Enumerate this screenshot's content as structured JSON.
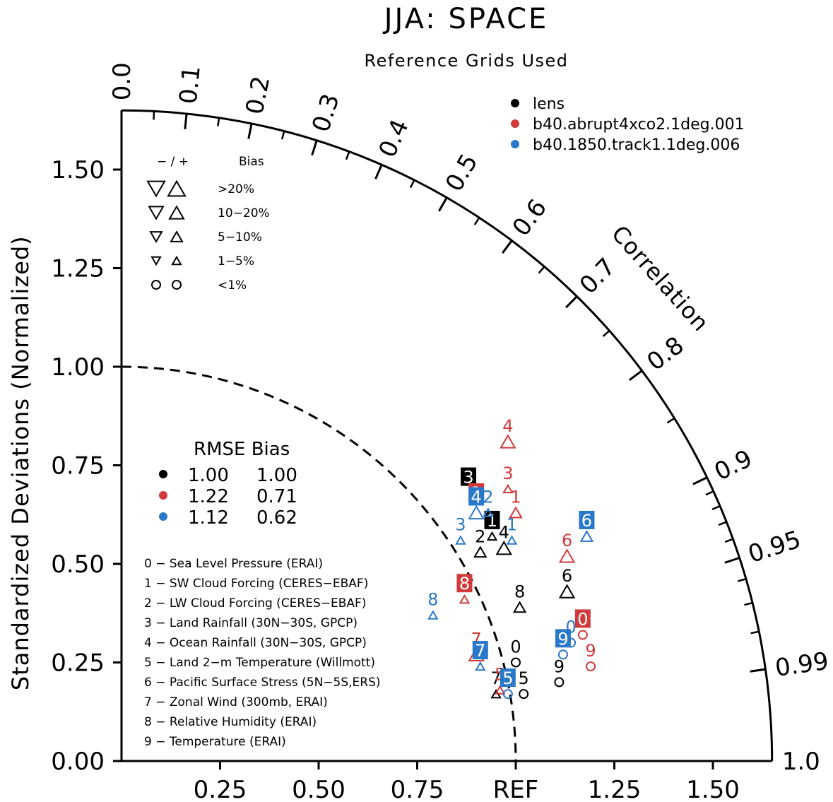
{
  "title": "JJA: SPACE",
  "subtitle": "Reference Grids Used",
  "colors": {
    "black": "#000000",
    "red": "#d13a3a",
    "blue": "#2a78c9"
  },
  "chart_data": {
    "type": "scatter",
    "title": "JJA: SPACE",
    "subtitle": "Reference Grids Used",
    "ylabel": "Standardized Deviations (Normalized)",
    "angular_label": "Correlation",
    "x_tick_labels": [
      "0.25",
      "0.50",
      "0.75",
      "REF",
      "1.25",
      "1.50"
    ],
    "x_tick_values": [
      0.25,
      0.5,
      0.75,
      1.0,
      1.25,
      1.5
    ],
    "y_tick_labels": [
      "0.00",
      "0.25",
      "0.50",
      "0.75",
      "1.00",
      "1.25",
      "1.50"
    ],
    "y_tick_values": [
      0,
      0.25,
      0.5,
      0.75,
      1.0,
      1.25,
      1.5
    ],
    "correlation_labels": [
      "0.0",
      "0.1",
      "0.2",
      "0.3",
      "0.4",
      "0.5",
      "0.6",
      "0.7",
      "0.8",
      "0.9",
      "0.95",
      "0.99",
      "1.0"
    ],
    "correlation_values": [
      0,
      0.1,
      0.2,
      0.3,
      0.4,
      0.5,
      0.6,
      0.7,
      0.8,
      0.9,
      0.95,
      0.99,
      1.0
    ],
    "max_std": 1.65,
    "ref_std": 1.0,
    "series": [
      {
        "name": "lens",
        "color": "black",
        "points": [
          {
            "id": "0",
            "x": 1.0,
            "y": 0.25,
            "marker": "circle",
            "sz": 1,
            "bias": "neg",
            "box": false
          },
          {
            "id": "1",
            "x": 0.94,
            "y": 0.57,
            "marker": "tri",
            "sz": 1,
            "bias": "pos",
            "box": true
          },
          {
            "id": "2",
            "x": 0.91,
            "y": 0.53,
            "marker": "tri",
            "sz": 2,
            "bias": "pos",
            "box": false
          },
          {
            "id": "3",
            "x": 0.88,
            "y": 0.68,
            "marker": "none",
            "sz": 0,
            "bias": "pos",
            "box": true
          },
          {
            "id": "4",
            "x": 0.97,
            "y": 0.54,
            "marker": "tri",
            "sz": 3,
            "bias": "pos",
            "box": false
          },
          {
            "id": "5",
            "x": 1.02,
            "y": 0.17,
            "marker": "circle",
            "sz": 1,
            "bias": "neg",
            "box": false
          },
          {
            "id": "6",
            "x": 1.13,
            "y": 0.43,
            "marker": "tri",
            "sz": 3,
            "bias": "pos",
            "box": false
          },
          {
            "id": "7",
            "x": 0.95,
            "y": 0.17,
            "marker": "tri",
            "sz": 1,
            "bias": "pos",
            "box": false
          },
          {
            "id": "8",
            "x": 1.01,
            "y": 0.39,
            "marker": "tri",
            "sz": 2,
            "bias": "pos",
            "box": false
          },
          {
            "id": "9",
            "x": 1.11,
            "y": 0.2,
            "marker": "circle",
            "sz": 1,
            "bias": "neg",
            "box": false
          }
        ]
      },
      {
        "name": "b40.abrupt4xco2.1deg.001",
        "color": "red",
        "points": [
          {
            "id": "0",
            "x": 1.17,
            "y": 0.32,
            "marker": "circle",
            "sz": 1,
            "bias": "neg",
            "box": true
          },
          {
            "id": "1",
            "x": 1.0,
            "y": 0.63,
            "marker": "tri",
            "sz": 2,
            "bias": "pos",
            "box": false
          },
          {
            "id": "2",
            "x": 0.9,
            "y": 0.64,
            "marker": "none",
            "sz": 0,
            "bias": "pos",
            "box": true
          },
          {
            "id": "3",
            "x": 0.98,
            "y": 0.69,
            "marker": "tri",
            "sz": 1,
            "bias": "pos",
            "box": false
          },
          {
            "id": "4",
            "x": 0.98,
            "y": 0.81,
            "marker": "tri",
            "sz": 3,
            "bias": "pos",
            "box": false
          },
          {
            "id": "5",
            "x": 0.96,
            "y": 0.18,
            "marker": "tri",
            "sz": 1,
            "bias": "pos",
            "box": false
          },
          {
            "id": "6",
            "x": 1.13,
            "y": 0.52,
            "marker": "tri",
            "sz": 3,
            "bias": "pos",
            "box": false
          },
          {
            "id": "7",
            "x": 0.9,
            "y": 0.27,
            "marker": "tri",
            "sz": 3,
            "bias": "pos",
            "box": false
          },
          {
            "id": "8",
            "x": 0.87,
            "y": 0.41,
            "marker": "tri",
            "sz": 1,
            "bias": "pos",
            "box": true
          },
          {
            "id": "9",
            "x": 1.19,
            "y": 0.24,
            "marker": "circle",
            "sz": 1,
            "bias": "neg",
            "box": false
          }
        ]
      },
      {
        "name": "b40.1850.track1.1deg.006",
        "color": "blue",
        "points": [
          {
            "id": "0",
            "x": 1.14,
            "y": 0.3,
            "marker": "circle",
            "sz": 1,
            "bias": "neg",
            "box": false
          },
          {
            "id": "1",
            "x": 0.99,
            "y": 0.56,
            "marker": "tri",
            "sz": 1,
            "bias": "pos",
            "box": false
          },
          {
            "id": "2",
            "x": 0.93,
            "y": 0.63,
            "marker": "tri",
            "sz": 1,
            "bias": "pos",
            "box": false
          },
          {
            "id": "3",
            "x": 0.86,
            "y": 0.56,
            "marker": "tri",
            "sz": 1,
            "bias": "pos",
            "box": false
          },
          {
            "id": "4",
            "x": 0.9,
            "y": 0.63,
            "marker": "tri",
            "sz": 3,
            "bias": "pos",
            "box": true
          },
          {
            "id": "5",
            "x": 0.98,
            "y": 0.17,
            "marker": "circle",
            "sz": 1,
            "bias": "neg",
            "box": true
          },
          {
            "id": "6",
            "x": 1.18,
            "y": 0.57,
            "marker": "tri",
            "sz": 2,
            "bias": "pos",
            "box": true
          },
          {
            "id": "7",
            "x": 0.91,
            "y": 0.24,
            "marker": "tri",
            "sz": 1,
            "bias": "pos",
            "box": true
          },
          {
            "id": "8",
            "x": 0.79,
            "y": 0.37,
            "marker": "tri",
            "sz": 1,
            "bias": "pos",
            "box": false
          },
          {
            "id": "9",
            "x": 1.12,
            "y": 0.27,
            "marker": "circle",
            "sz": 1,
            "bias": "neg",
            "box": true
          }
        ]
      }
    ]
  },
  "legend_models": [
    {
      "name": "lens",
      "color": "black"
    },
    {
      "name": "b40.abrupt4xco2.1deg.001",
      "color": "red"
    },
    {
      "name": "b40.1850.track1.1deg.006",
      "color": "blue"
    }
  ],
  "bias_legend": {
    "header_signs": "−  /  +",
    "header_bias": "Bias",
    "rows": [
      {
        "label": ">20%",
        "sz": 4,
        "marker": "tri"
      },
      {
        "label": "10−20%",
        "sz": 3,
        "marker": "tri"
      },
      {
        "label": "5−10%",
        "sz": 2,
        "marker": "tri"
      },
      {
        "label": "1−5%",
        "sz": 1,
        "marker": "tri"
      },
      {
        "label": "<1%",
        "sz": 1,
        "marker": "circle"
      }
    ]
  },
  "rmse_table": {
    "header": "RMSE Bias",
    "rows": [
      {
        "color": "black",
        "rmse": "1.00",
        "bias": "1.00"
      },
      {
        "color": "red",
        "rmse": "1.22",
        "bias": "0.71"
      },
      {
        "color": "blue",
        "rmse": "1.12",
        "bias": "0.62"
      }
    ]
  },
  "variables": [
    "0 − Sea Level Pressure (ERAI)",
    "1 − SW Cloud Forcing (CERES−EBAF)",
    "2 − LW Cloud Forcing (CERES−EBAF)",
    "3 − Land Rainfall (30N−30S, GPCP)",
    "4 − Ocean Rainfall (30N−30S, GPCP)",
    "5 − Land 2−m Temperature (Willmott)",
    "6 − Pacific Surface Stress (5N−5S,ERS)",
    "7 − Zonal Wind (300mb, ERAI)",
    "8 − Relative Humidity (ERAI)",
    "9 − Temperature (ERAI)"
  ]
}
